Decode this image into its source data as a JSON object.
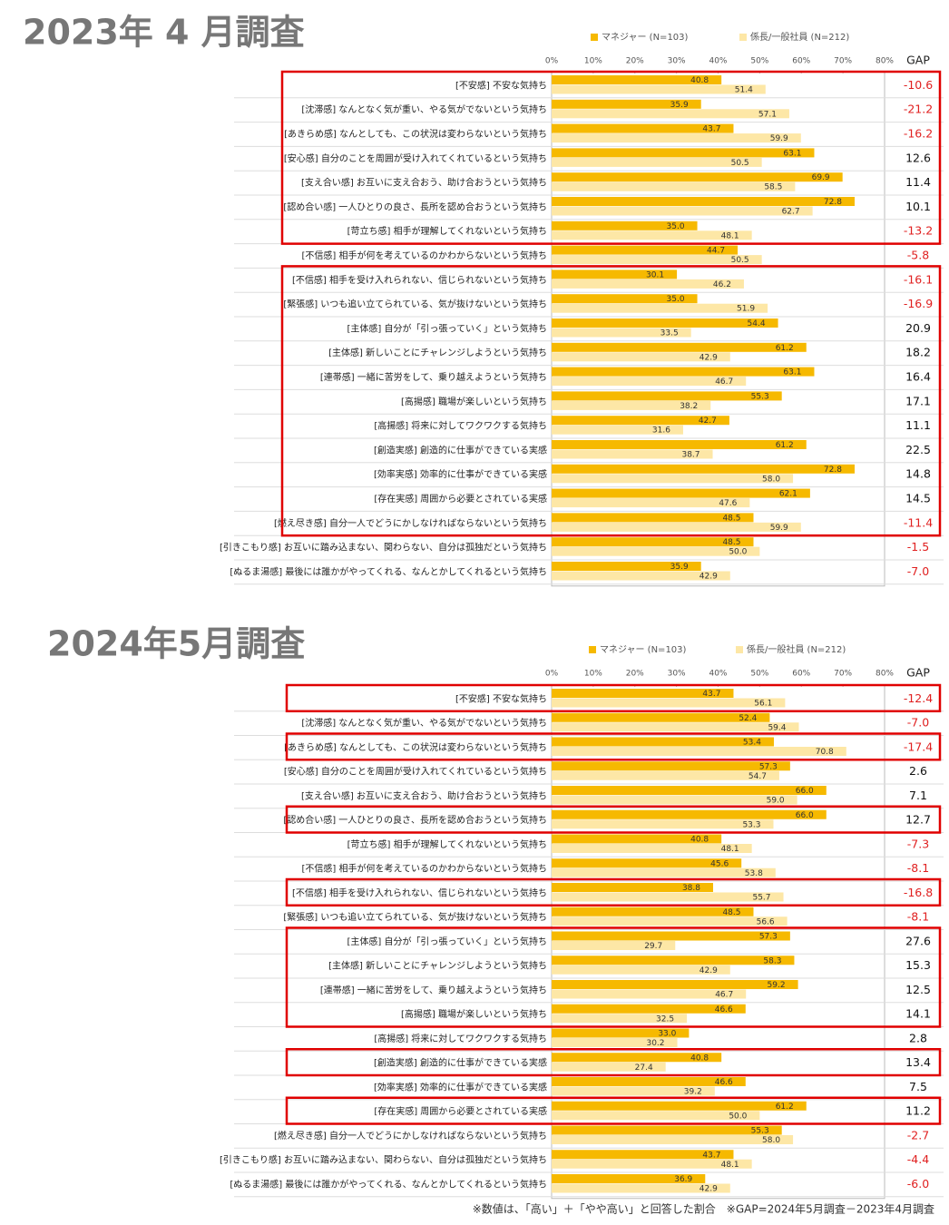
{
  "chart_data": [
    {
      "type": "bar",
      "orientation": "horizontal",
      "title": "2023年 4 月調査",
      "categories": [
        "[不安感] 不安な気持ち",
        "[沈滞感] なんとなく気が重い、やる気がでないという気持ち",
        "[あきらめ感] なんとしても、この状況は変わらないという気持ち",
        "[安心感] 自分のことを周囲が受け入れてくれているという気持ち",
        "[支え合い感] お互いに支え合おう、助け合おうという気持ち",
        "[認め合い感] 一人ひとりの良さ、長所を認め合おうという気持ち",
        "[苛立ち感] 相手が理解してくれないという気持ち",
        "[不信感] 相手が何を考えているのかわからないという気持ち",
        "[不信感] 相手を受け入れられない、信じられないという気持ち",
        "[緊張感] いつも追い立てられている、気が抜けないという気持ち",
        "[主体感] 自分が「引っ張っていく」という気持ち",
        "[主体感] 新しいことにチャレンジしようという気持ち",
        "[連帯感] 一緒に苦労をして、乗り越えようという気持ち",
        "[高揚感] 職場が楽しいという気持ち",
        "[高揚感] 将来に対してワクワクする気持ち",
        "[創造実感] 創造的に仕事ができている実感",
        "[効率実感] 効率的に仕事ができている実感",
        "[存在実感] 周囲から必要とされている実感",
        "[燃え尽き感] 自分一人でどうにかしなければならないという気持ち",
        "[引きこもり感] お互いに踏み込まない、関わらない、自分は孤独だという気持ち",
        "[ぬるま湯感] 最後には誰かがやってくれる、なんとかしてくれるという気持ち"
      ],
      "series": [
        {
          "name": "マネジャー (N=103)",
          "color": "#f6b900",
          "values": [
            40.8,
            35.9,
            43.7,
            63.1,
            69.9,
            72.8,
            35.0,
            44.7,
            30.1,
            35.0,
            54.4,
            61.2,
            63.1,
            55.3,
            42.7,
            61.2,
            72.8,
            62.1,
            48.5,
            48.5,
            35.9
          ],
          "value_labels": [
            "40.8",
            "35.9",
            "43.7",
            "63.1",
            "69.9",
            "72.8",
            "35.0",
            "44.7",
            "30.1",
            "35.0",
            "54.4",
            "61.2",
            "63.1",
            "55.3",
            "42.7",
            "61.2",
            "72.8",
            "62.1",
            "48.5",
            "48.5",
            "35.9"
          ]
        },
        {
          "name": "係長/一般社員 (N=212)",
          "color": "#fde7a6",
          "values": [
            51.4,
            57.1,
            59.9,
            50.5,
            58.5,
            62.7,
            48.1,
            50.5,
            46.2,
            51.9,
            33.5,
            42.9,
            46.7,
            38.2,
            31.6,
            38.7,
            58.0,
            47.6,
            59.9,
            50.0,
            42.9
          ],
          "value_labels": [
            "51.4",
            "57.1",
            "59.9",
            "50.5",
            "58.5",
            "62.7",
            "48.1",
            "50.5",
            "46.2",
            "51.9",
            "33.5",
            "42.9",
            "46.7",
            "38.2",
            "31.6",
            "38.7",
            "58.0",
            "47.6",
            "59.9",
            "50.0",
            "42.9"
          ]
        }
      ],
      "xlim": [
        0,
        80
      ],
      "xticks": [
        {
          "value": 0,
          "label": "0%"
        },
        {
          "value": 10,
          "label": "10%"
        },
        {
          "value": 20,
          "label": "20%"
        },
        {
          "value": 30,
          "label": "30%"
        },
        {
          "value": 40,
          "label": "40%"
        },
        {
          "value": 50,
          "label": "50%"
        },
        {
          "value": 60,
          "label": "60%"
        },
        {
          "value": 70,
          "label": "70%"
        },
        {
          "value": 80,
          "label": "80%"
        }
      ],
      "gap": {
        "title": "GAP",
        "values": [
          -10.6,
          -21.2,
          -16.2,
          12.6,
          11.4,
          10.1,
          -13.2,
          -5.8,
          -16.1,
          -16.9,
          20.9,
          18.2,
          16.4,
          17.1,
          11.1,
          22.5,
          14.8,
          14.5,
          -11.4,
          -1.5,
          -7.0
        ],
        "value_labels": [
          "-10.6",
          "-21.2",
          "-16.2",
          "12.6",
          "11.4",
          "10.1",
          "-13.2",
          "-5.8",
          "-16.1",
          "-16.9",
          "20.9",
          "18.2",
          "16.4",
          "17.1",
          "11.1",
          "22.5",
          "14.8",
          "14.5",
          "-11.4",
          "-1.5",
          "-7.0"
        ]
      }
    },
    {
      "type": "bar",
      "orientation": "horizontal",
      "title": "2024年5月調査",
      "categories": [
        "[不安感] 不安な気持ち",
        "[沈滞感] なんとなく気が重い、やる気がでないという気持ち",
        "[あきらめ感] なんとしても、この状況は変わらないという気持ち",
        "[安心感] 自分のことを周囲が受け入れてくれているという気持ち",
        "[支え合い感] お互いに支え合おう、助け合おうという気持ち",
        "[認め合い感] 一人ひとりの良さ、長所を認め合おうという気持ち",
        "[苛立ち感] 相手が理解してくれないという気持ち",
        "[不信感] 相手が何を考えているのかわからないという気持ち",
        "[不信感] 相手を受け入れられない、信じられないという気持ち",
        "[緊張感] いつも追い立てられている、気が抜けないという気持ち",
        "[主体感] 自分が「引っ張っていく」という気持ち",
        "[主体感] 新しいことにチャレンジしようという気持ち",
        "[連帯感] 一緒に苦労をして、乗り越えようという気持ち",
        "[高揚感] 職場が楽しいという気持ち",
        "[高揚感] 将来に対してワクワクする気持ち",
        "[創造実感] 創造的に仕事ができている実感",
        "[効率実感] 効率的に仕事ができている実感",
        "[存在実感] 周囲から必要とされている実感",
        "[燃え尽き感] 自分一人でどうにかしなければならないという気持ち",
        "[引きこもり感] お互いに踏み込まない、関わらない、自分は孤独だという気持ち",
        "[ぬるま湯感] 最後には誰かがやってくれる、なんとかしてくれるという気持ち"
      ],
      "series": [
        {
          "name": "マネジャー (N=103)",
          "color": "#f6b900",
          "values": [
            43.7,
            52.4,
            53.4,
            57.3,
            66.0,
            66.0,
            40.8,
            45.6,
            38.8,
            48.5,
            57.3,
            58.3,
            59.2,
            46.6,
            33.0,
            40.8,
            46.6,
            61.2,
            55.3,
            43.7,
            36.9
          ],
          "value_labels": [
            "43.7",
            "52.4",
            "53.4",
            "57.3",
            "66.0",
            "66.0",
            "40.8",
            "45.6",
            "38.8",
            "48.5",
            "57.3",
            "58.3",
            "59.2",
            "46.6",
            "33.0",
            "40.8",
            "46.6",
            "61.2",
            "55.3",
            "43.7",
            "36.9"
          ]
        },
        {
          "name": "係長/一般社員 (N=212)",
          "color": "#fde7a6",
          "values": [
            56.1,
            59.4,
            70.8,
            54.7,
            59.0,
            53.3,
            48.1,
            53.8,
            55.7,
            56.6,
            29.7,
            42.9,
            46.7,
            32.5,
            30.2,
            27.4,
            39.2,
            50.0,
            58.0,
            48.1,
            42.9
          ],
          "value_labels": [
            "56.1",
            "59.4",
            "70.8",
            "54.7",
            "59.0",
            "53.3",
            "48.1",
            "53.8",
            "55.7",
            "56.6",
            "29.7",
            "42.9",
            "46.7",
            "32.5",
            "30.2",
            "27.4",
            "39.2",
            "50.0",
            "58.0",
            "48.1",
            "42.9"
          ]
        }
      ],
      "xlim": [
        0,
        80
      ],
      "xticks": [
        {
          "value": 0,
          "label": "0%"
        },
        {
          "value": 10,
          "label": "10%"
        },
        {
          "value": 20,
          "label": "20%"
        },
        {
          "value": 30,
          "label": "30%"
        },
        {
          "value": 40,
          "label": "40%"
        },
        {
          "value": 50,
          "label": "50%"
        },
        {
          "value": 60,
          "label": "60%"
        },
        {
          "value": 70,
          "label": "70%"
        },
        {
          "value": 80,
          "label": "80%"
        }
      ],
      "gap": {
        "title": "GAP",
        "values": [
          -12.4,
          -7.0,
          -17.4,
          2.6,
          7.1,
          12.7,
          -7.3,
          -8.1,
          -16.8,
          -8.1,
          27.6,
          15.3,
          12.5,
          14.1,
          2.8,
          13.4,
          7.5,
          11.2,
          -2.7,
          -4.4,
          -6.0
        ],
        "value_labels": [
          "-12.4",
          "-7.0",
          "-17.4",
          "2.6",
          "7.1",
          "12.7",
          "-7.3",
          "-8.1",
          "-16.8",
          "-8.1",
          "27.6",
          "15.3",
          "12.5",
          "14.1",
          "2.8",
          "13.4",
          "7.5",
          "11.2",
          "-2.7",
          "-4.4",
          "-6.0"
        ]
      }
    }
  ],
  "note": "※数値は、「高い」＋「やや高い」と回答した割合　※GAP=2024年5月調査－2023年4月調査"
}
